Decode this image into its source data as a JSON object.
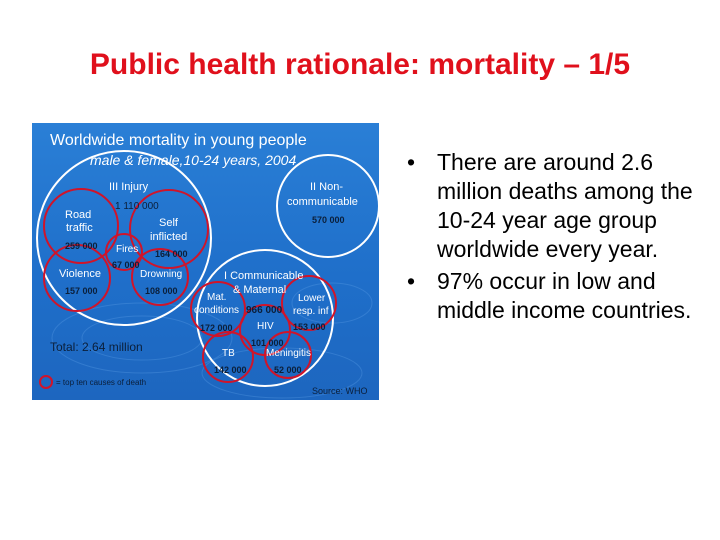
{
  "slide": {
    "title": "Public health rationale: mortality – 1/5"
  },
  "figure": {
    "title": "Worldwide mortality in young people",
    "subtitle": "male & female,10-24 years, 2004",
    "groups": {
      "injury": {
        "label": "III  Injury",
        "value": "1 110 000"
      },
      "noncommunicable": {
        "label_line1": "II Non-",
        "label_line2": "communicable",
        "value": "570 000"
      },
      "communicable": {
        "label_line1": "I Communicable",
        "label_line2": "& Maternal",
        "value": "966 000"
      }
    },
    "causes": {
      "road_traffic": {
        "label_line1": "Road",
        "label_line2": "traffic",
        "value": "259 000"
      },
      "self_inflicted": {
        "label_line1": "Self",
        "label_line2": "inflicted",
        "value": "164 000"
      },
      "fires": {
        "label": "Fires",
        "value": "67 000"
      },
      "violence": {
        "label": "Violence",
        "value": "157 000"
      },
      "drowning": {
        "label": "Drowning",
        "value": "108 000"
      },
      "mat_conditions": {
        "label_line1": "Mat.",
        "label_line2": "conditions",
        "value": "172 000"
      },
      "lower_resp": {
        "label_line1": "Lower",
        "label_line2": "resp. inf",
        "value": "153 000"
      },
      "hiv": {
        "label": "HIV",
        "value": "101 000"
      },
      "tb": {
        "label": "TB",
        "value": "142 000"
      },
      "meningitis": {
        "label": "Meningitis",
        "value": "52 000"
      }
    },
    "total": "Total: 2.64 million",
    "legend": "= top ten causes of death",
    "source": "Source: WHO",
    "colors": {
      "background": "#1f6fca",
      "group_ring": "#ffffff",
      "cause_ring": "#d0142a",
      "title_text": "#ffffff",
      "value_text": "#0b1f3a"
    }
  },
  "bullets": [
    "There are around 2.6 million deaths among the 10-24 year age group worldwide every year.",
    "97% occur in low and middle income countries."
  ]
}
